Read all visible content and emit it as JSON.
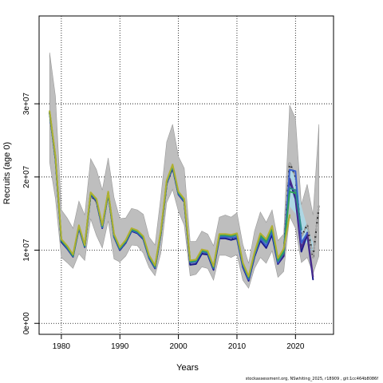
{
  "footnote": "stockassessment.org, NSwhiting_2025, r18909 , git:1cc464b8086f",
  "chart_data": {
    "type": "line",
    "title": "",
    "xlabel": "Years",
    "ylabel": "Recruits (age 0)",
    "xlim": [
      1976.2,
      2026.5
    ],
    "ylim": [
      -1500000,
      42000000
    ],
    "xticks": [
      1980,
      1990,
      2000,
      2010,
      2020
    ],
    "xtick_labels": [
      "1980",
      "1990",
      "2000",
      "2010",
      "2020"
    ],
    "yticks": [
      0,
      10000000,
      20000000,
      30000000
    ],
    "ytick_labels": [
      "0e+00",
      "1e+07",
      "2e+07",
      "3e+07"
    ],
    "grid": true,
    "grid_style": "dotted",
    "colors": {
      "ci_band": "#bebebe",
      "ci_band_outline": "#9a9a9a",
      "latest_ci": "#add8e6",
      "retro_black": "#000000",
      "retro_gray": "#a9a9a9",
      "retro_navy": "#1a1a8c",
      "retro_purple": "#4b2c8c",
      "retro_blue": "#3a5fcd",
      "retro_teal": "#2c8c8c",
      "retro_green": "#2ca05a",
      "retro_olive": "#b0b030"
    },
    "confidence_band": {
      "x": [
        1978,
        1979,
        1980,
        1981,
        1982,
        1983,
        1984,
        1985,
        1986,
        1987,
        1988,
        1989,
        1990,
        1991,
        1992,
        1993,
        1994,
        1995,
        1996,
        1997,
        1998,
        1999,
        2000,
        2001,
        2002,
        2003,
        2004,
        2005,
        2006,
        2007,
        2008,
        2009,
        2010,
        2011,
        2012,
        2013,
        2014,
        2015,
        2016,
        2017,
        2018,
        2019,
        2020,
        2021,
        2022,
        2023,
        2024
      ],
      "lower": [
        22000000,
        17000000,
        9000000,
        8300000,
        7500000,
        9500000,
        8600000,
        14300000,
        12000000,
        10300000,
        14000000,
        8800000,
        8400000,
        9200000,
        10700000,
        10600000,
        9600000,
        7600000,
        6500000,
        9600000,
        16500000,
        18300000,
        15300000,
        13400000,
        6500000,
        6700000,
        7700000,
        7500000,
        5900000,
        9300000,
        9300000,
        9000000,
        9400000,
        5900000,
        4800000,
        7500000,
        9000000,
        8200000,
        9900000,
        6300000,
        7100000,
        14600000,
        13000000,
        8300000,
        9000000,
        6800000,
        9200000
      ],
      "upper": [
        37000000,
        31000000,
        15500000,
        14400000,
        13000000,
        16700000,
        14800000,
        22500000,
        21000000,
        18200000,
        22600000,
        17200000,
        14300000,
        14400000,
        15700000,
        15500000,
        14900000,
        11800000,
        10700000,
        17300000,
        24800000,
        27200000,
        22800000,
        21200000,
        11200000,
        11200000,
        12600000,
        12200000,
        10600000,
        14500000,
        14800000,
        14500000,
        15100000,
        10800000,
        8200000,
        12600000,
        15200000,
        13800000,
        15500000,
        11300000,
        12200000,
        29800000,
        28000000,
        16200000,
        19000000,
        14800000,
        27200000
      ]
    },
    "latest_ci": {
      "x": [
        2019,
        2020,
        2021,
        2022,
        2023
      ],
      "lower": [
        16000000,
        15000000,
        10800000,
        11000000,
        9000000
      ],
      "upper": [
        21000000,
        20500000,
        16000000,
        13200000,
        11000000
      ]
    },
    "series": [
      {
        "color_key": "retro_black",
        "dashed": true,
        "x": [
          1978,
          1979,
          1980,
          1981,
          1982,
          1983,
          1984,
          1985,
          1986,
          1987,
          1988,
          1989,
          1990,
          1991,
          1992,
          1993,
          1994,
          1995,
          1996,
          1997,
          1998,
          1999,
          2000,
          2001,
          2002,
          2003,
          2004,
          2005,
          2006,
          2007,
          2008,
          2009,
          2010,
          2011,
          2012,
          2013,
          2014,
          2015,
          2016,
          2017,
          2018,
          2019,
          2020,
          2021,
          2022,
          2023,
          2024
        ],
        "y": [
          28800000,
          22500000,
          11200000,
          10300000,
          9200000,
          13100000,
          10500000,
          17500000,
          16600000,
          13100000,
          17800000,
          11900000,
          10000000,
          11000000,
          12700000,
          12400000,
          11600000,
          9000000,
          7600000,
          12300000,
          19000000,
          21200000,
          17700000,
          16700000,
          8200000,
          8300000,
          9700000,
          9600000,
          7500000,
          11800000,
          11800000,
          11600000,
          11800000,
          8000000,
          6100000,
          9300000,
          11600000,
          10500000,
          12400000,
          8600000,
          9800000,
          22000000,
          20000000,
          11800000,
          13500000,
          9000000,
          16000000
        ]
      },
      {
        "color_key": "retro_gray",
        "dashed": true,
        "x": [
          1978,
          1979,
          1980,
          1981,
          1982,
          1983,
          1984,
          1985,
          1986,
          1987,
          1988,
          1989,
          1990,
          1991,
          1992,
          1993,
          1994,
          1995,
          1996,
          1997,
          1998,
          1999,
          2000,
          2001,
          2002,
          2003,
          2004,
          2005,
          2006,
          2007,
          2008,
          2009,
          2010,
          2011,
          2012,
          2013,
          2014,
          2015,
          2016,
          2017,
          2018,
          2019,
          2020,
          2021,
          2022,
          2023,
          2024
        ],
        "y": [
          28800000,
          22500000,
          11200000,
          10300000,
          9200000,
          13100000,
          10500000,
          17500000,
          16600000,
          13100000,
          17800000,
          11900000,
          10000000,
          11000000,
          12700000,
          12400000,
          11600000,
          9000000,
          7600000,
          12300000,
          19000000,
          21200000,
          17700000,
          16700000,
          8200000,
          8300000,
          9700000,
          9600000,
          7500000,
          11800000,
          11800000,
          11600000,
          11800000,
          8000000,
          6100000,
          9300000,
          11600000,
          10500000,
          12400000,
          8600000,
          9800000,
          22000000,
          20000000,
          11800000,
          13500000,
          9000000,
          16000000
        ]
      },
      {
        "color_key": "retro_navy",
        "dashed": false,
        "x": [
          1978,
          1979,
          1980,
          1981,
          1982,
          1983,
          1984,
          1985,
          1986,
          1987,
          1988,
          1989,
          1990,
          1991,
          1992,
          1993,
          1994,
          1995,
          1996,
          1997,
          1998,
          1999,
          2000,
          2001,
          2002,
          2003,
          2004,
          2005,
          2006,
          2007,
          2008,
          2009,
          2010,
          2011,
          2012,
          2013,
          2014,
          2015,
          2016,
          2017,
          2018,
          2019,
          2020,
          2021,
          2022,
          2023
        ],
        "y": [
          28700000,
          22400000,
          11100000,
          10200000,
          9100000,
          13000000,
          10400000,
          17600000,
          16700000,
          13000000,
          17700000,
          11800000,
          10000000,
          11000000,
          12600000,
          12300000,
          11500000,
          8900000,
          7500000,
          12200000,
          19100000,
          21300000,
          17600000,
          16600000,
          8000000,
          8100000,
          9500000,
          9400000,
          7300000,
          11600000,
          11600000,
          11400000,
          11600000,
          7700000,
          5800000,
          9100000,
          11300000,
          10300000,
          12100000,
          8100000,
          9200000,
          19500000,
          17000000,
          9800000,
          12100000,
          6000000
        ]
      },
      {
        "color_key": "retro_purple",
        "dashed": false,
        "x": [
          2017,
          2018,
          2019,
          2020,
          2021,
          2022,
          2023
        ],
        "y": [
          8200000,
          9400000,
          19800000,
          17300000,
          10300000,
          12400000,
          6400000
        ]
      },
      {
        "color_key": "retro_blue",
        "dashed": false,
        "x": [
          1978,
          1979,
          1980,
          1981,
          1982,
          1983,
          1984,
          1985,
          1986,
          1987,
          1988,
          1989,
          1990,
          1991,
          1992,
          1993,
          1994,
          1995,
          1996,
          1997,
          1998,
          1999,
          2000,
          2001,
          2002,
          2003,
          2004,
          2005,
          2006,
          2007,
          2008,
          2009,
          2010,
          2011,
          2012,
          2013,
          2014,
          2015,
          2016,
          2017,
          2018,
          2019,
          2020,
          2021,
          2022
        ],
        "y": [
          28800000,
          22600000,
          11300000,
          10300000,
          9200000,
          13100000,
          10500000,
          17700000,
          16800000,
          13100000,
          17800000,
          11900000,
          10100000,
          11100000,
          12700000,
          12400000,
          11600000,
          9000000,
          7600000,
          12300000,
          19200000,
          21400000,
          17700000,
          16700000,
          8300000,
          8400000,
          9800000,
          9600000,
          7500000,
          11800000,
          11800000,
          11700000,
          11800000,
          7900000,
          6000000,
          9300000,
          11600000,
          10600000,
          12500000,
          8300000,
          9700000,
          21000000,
          20800000,
          11000000,
          12300000
        ]
      },
      {
        "color_key": "retro_teal",
        "dashed": false,
        "x": [
          1978,
          1979,
          1980,
          1981,
          1982,
          1983,
          1984,
          1985,
          1986,
          1987,
          1988,
          1989,
          1990,
          1991,
          1992,
          1993,
          1994,
          1995,
          1996,
          1997,
          1998,
          1999,
          2000,
          2001,
          2002,
          2003,
          2004,
          2005,
          2006,
          2007,
          2008,
          2009,
          2010,
          2011,
          2012,
          2013,
          2014,
          2015,
          2016,
          2017,
          2018,
          2019,
          2020,
          2021
        ],
        "y": [
          28800000,
          22600000,
          11300000,
          10400000,
          9200000,
          13200000,
          10500000,
          17800000,
          16900000,
          13200000,
          17900000,
          12000000,
          10200000,
          11200000,
          12800000,
          12500000,
          11700000,
          9100000,
          7700000,
          12400000,
          19300000,
          21500000,
          17800000,
          16800000,
          8400000,
          8500000,
          9900000,
          9700000,
          7600000,
          12000000,
          12000000,
          11900000,
          12100000,
          8100000,
          6200000,
          9500000,
          11900000,
          11000000,
          12900000,
          8500000,
          9600000,
          18500000,
          18200000,
          12800000
        ]
      },
      {
        "color_key": "retro_green",
        "dashed": false,
        "x": [
          1978,
          1979,
          1980,
          1981,
          1982,
          1983,
          1984,
          1985,
          1986,
          1987,
          1988,
          1989,
          1990,
          1991,
          1992,
          1993,
          1994,
          1995,
          1996,
          1997,
          1998,
          1999,
          2000,
          2001,
          2002,
          2003,
          2004,
          2005,
          2006,
          2007,
          2008,
          2009,
          2010,
          2011,
          2012,
          2013,
          2014,
          2015,
          2016,
          2017,
          2018,
          2019,
          2020
        ],
        "y": [
          28900000,
          22700000,
          11400000,
          10500000,
          9300000,
          13300000,
          10600000,
          17800000,
          16900000,
          13300000,
          17900000,
          12100000,
          10300000,
          11300000,
          12900000,
          12600000,
          11800000,
          9200000,
          7800000,
          12500000,
          19400000,
          21600000,
          17900000,
          16900000,
          8500000,
          8600000,
          10000000,
          9800000,
          7700000,
          12100000,
          12100000,
          12000000,
          12200000,
          8200000,
          6300000,
          9600000,
          12100000,
          11300000,
          13100000,
          8700000,
          9900000,
          18000000,
          17800000
        ]
      },
      {
        "color_key": "retro_olive",
        "dashed": false,
        "x": [
          1978,
          1979,
          1980,
          1981,
          1982,
          1983,
          1984,
          1985,
          1986,
          1987,
          1988,
          1989,
          1990,
          1991,
          1992,
          1993,
          1994,
          1995,
          1996,
          1997,
          1998,
          1999,
          2000,
          2001,
          2002,
          2003,
          2004,
          2005,
          2006,
          2007,
          2008,
          2009,
          2010,
          2011,
          2012,
          2013,
          2014,
          2015,
          2016,
          2017,
          2018,
          2019
        ],
        "y": [
          29000000,
          22800000,
          11500000,
          10600000,
          9400000,
          13400000,
          10700000,
          17900000,
          17000000,
          13400000,
          18000000,
          12200000,
          10400000,
          11400000,
          13000000,
          12700000,
          11900000,
          9300000,
          7900000,
          12600000,
          19500000,
          21700000,
          18000000,
          17000000,
          8600000,
          8700000,
          10100000,
          9900000,
          7800000,
          12200000,
          12200000,
          12100000,
          12300000,
          8300000,
          6400000,
          9700000,
          12300000,
          11500000,
          13300000,
          8900000,
          10200000,
          14800000
        ]
      }
    ]
  }
}
